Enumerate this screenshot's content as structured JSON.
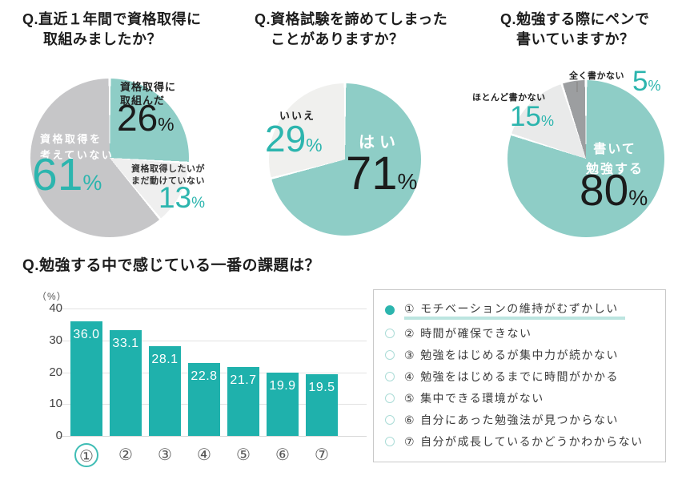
{
  "symbols": {
    "percent": "%"
  },
  "colors": {
    "pie_teal": "#8ecdc6",
    "pie_light_gray": "#efefef",
    "pie_gray": "#c6c6c8",
    "pie_dark_gray": "#9c9ea0",
    "bar_teal": "#1fb1ac",
    "teal_number": "#2cb5ae",
    "text_dark": "#1d1d1d",
    "grid_line": "#e2e2e2",
    "legend_border": "#c9c9c9",
    "highlight_underline": "#bce5e0"
  },
  "chart_data": [
    {
      "type": "pie",
      "title": "Q.直近１年間で資格取得に取組みましたか？",
      "title_lines": [
        "Q.直近１年間で資格取得に",
        "取組みましたか？"
      ],
      "unit": "%",
      "start_angle": "top",
      "direction": "clockwise",
      "slices": [
        {
          "label": "資格取得に取組んだ",
          "label_lines": [
            "資格取得に",
            "取組んだ"
          ],
          "value": 26,
          "color": "#8ecdc6"
        },
        {
          "label": "資格取得したいがまだ動けていない",
          "label_lines": [
            "資格取得したいが",
            "まだ動けていない"
          ],
          "value": 13,
          "color": "#efefef"
        },
        {
          "label": "資格取得を考えていない",
          "label_lines": [
            "資格取得を",
            "考えていない"
          ],
          "value": 61,
          "color": "#c6c6c8"
        }
      ]
    },
    {
      "type": "pie",
      "title": "Q.資格試験を諦めてしまったことがありますか？",
      "title_lines": [
        "Q.資格試験を諦めてしまった",
        "ことがありますか？"
      ],
      "unit": "%",
      "start_angle": "top",
      "direction": "clockwise",
      "slices": [
        {
          "label": "はい",
          "value": 71,
          "color": "#8ecdc6"
        },
        {
          "label": "いいえ",
          "value": 29,
          "color": "#f0f0ee"
        }
      ]
    },
    {
      "type": "pie",
      "title": "Q.勉強する際にペンで書いていますか？",
      "title_lines": [
        "Q.勉強する際にペンで",
        "書いていますか？"
      ],
      "unit": "%",
      "start_angle": "top",
      "direction": "clockwise",
      "slices": [
        {
          "label": "書いて勉強する",
          "label_lines": [
            "書いて",
            "勉強する"
          ],
          "value": 80,
          "color": "#8ecdc6"
        },
        {
          "label": "ほとんど書かない",
          "value": 15,
          "color": "#e9eaea"
        },
        {
          "label": "全く書かない",
          "value": 5,
          "color": "#9c9ea0"
        }
      ]
    },
    {
      "type": "bar",
      "title": "Q.勉強する中で感じている一番の課題は？",
      "ylabel": "（%）",
      "ylim": [
        0,
        40
      ],
      "y_ticks": [
        40,
        30,
        20,
        10,
        0
      ],
      "grid": true,
      "categories": [
        "①",
        "②",
        "③",
        "④",
        "⑤",
        "⑥",
        "⑦"
      ],
      "values": [
        36.0,
        33.1,
        28.1,
        22.8,
        21.7,
        19.9,
        19.5
      ],
      "value_labels": [
        "36.0",
        "33.1",
        "28.1",
        "22.8",
        "21.7",
        "19.9",
        "19.5"
      ],
      "bar_color": "#1fb1ac",
      "highlighted_index": 0,
      "legend_position": "right",
      "legend_items": [
        {
          "num": "①",
          "label": "モチベーションの維持がむずかしい",
          "selected": true
        },
        {
          "num": "②",
          "label": "時間が確保できない",
          "selected": false
        },
        {
          "num": "③",
          "label": "勉強をはじめるが集中力が続かない",
          "selected": false
        },
        {
          "num": "④",
          "label": "勉強をはじめるまでに時間がかかる",
          "selected": false
        },
        {
          "num": "⑤",
          "label": "集中できる環境がない",
          "selected": false
        },
        {
          "num": "⑥",
          "label": "自分にあった勉強法が見つからない",
          "selected": false
        },
        {
          "num": "⑦",
          "label": "自分が成長しているかどうかわからない",
          "selected": false
        }
      ]
    }
  ]
}
